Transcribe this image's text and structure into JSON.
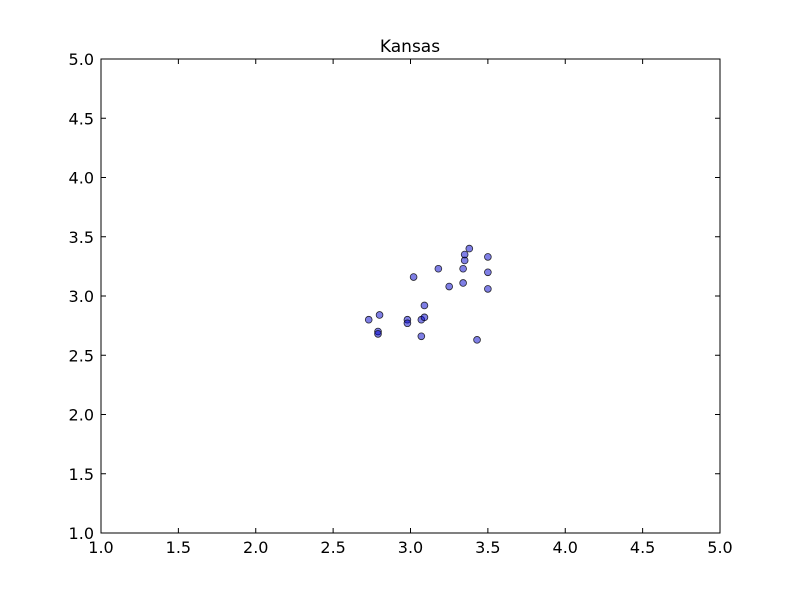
{
  "chart_data": {
    "type": "scatter",
    "title": "Kansas",
    "xlabel": "",
    "ylabel": "",
    "xlim": [
      1.0,
      5.0
    ],
    "ylim": [
      1.0,
      5.0
    ],
    "xticks": [
      "1.0",
      "1.5",
      "2.0",
      "2.5",
      "3.0",
      "3.5",
      "4.0",
      "4.5",
      "5.0"
    ],
    "yticks": [
      "1.0",
      "1.5",
      "2.0",
      "2.5",
      "3.0",
      "3.5",
      "4.0",
      "4.5",
      "5.0"
    ],
    "grid": false,
    "series": [
      {
        "name": "points",
        "color": "#0000cc",
        "alpha": 0.5,
        "points": [
          {
            "x": 2.73,
            "y": 2.8
          },
          {
            "x": 2.79,
            "y": 2.7
          },
          {
            "x": 2.79,
            "y": 2.68
          },
          {
            "x": 2.8,
            "y": 2.84
          },
          {
            "x": 2.98,
            "y": 2.8
          },
          {
            "x": 2.98,
            "y": 2.77
          },
          {
            "x": 3.02,
            "y": 3.16
          },
          {
            "x": 3.07,
            "y": 2.8
          },
          {
            "x": 3.07,
            "y": 2.66
          },
          {
            "x": 3.09,
            "y": 2.82
          },
          {
            "x": 3.09,
            "y": 2.92
          },
          {
            "x": 3.18,
            "y": 3.23
          },
          {
            "x": 3.25,
            "y": 3.08
          },
          {
            "x": 3.34,
            "y": 3.23
          },
          {
            "x": 3.34,
            "y": 3.11
          },
          {
            "x": 3.35,
            "y": 3.3
          },
          {
            "x": 3.35,
            "y": 3.35
          },
          {
            "x": 3.38,
            "y": 3.4
          },
          {
            "x": 3.43,
            "y": 2.63
          },
          {
            "x": 3.5,
            "y": 3.33
          },
          {
            "x": 3.5,
            "y": 3.2
          },
          {
            "x": 3.5,
            "y": 3.06
          }
        ]
      }
    ]
  }
}
